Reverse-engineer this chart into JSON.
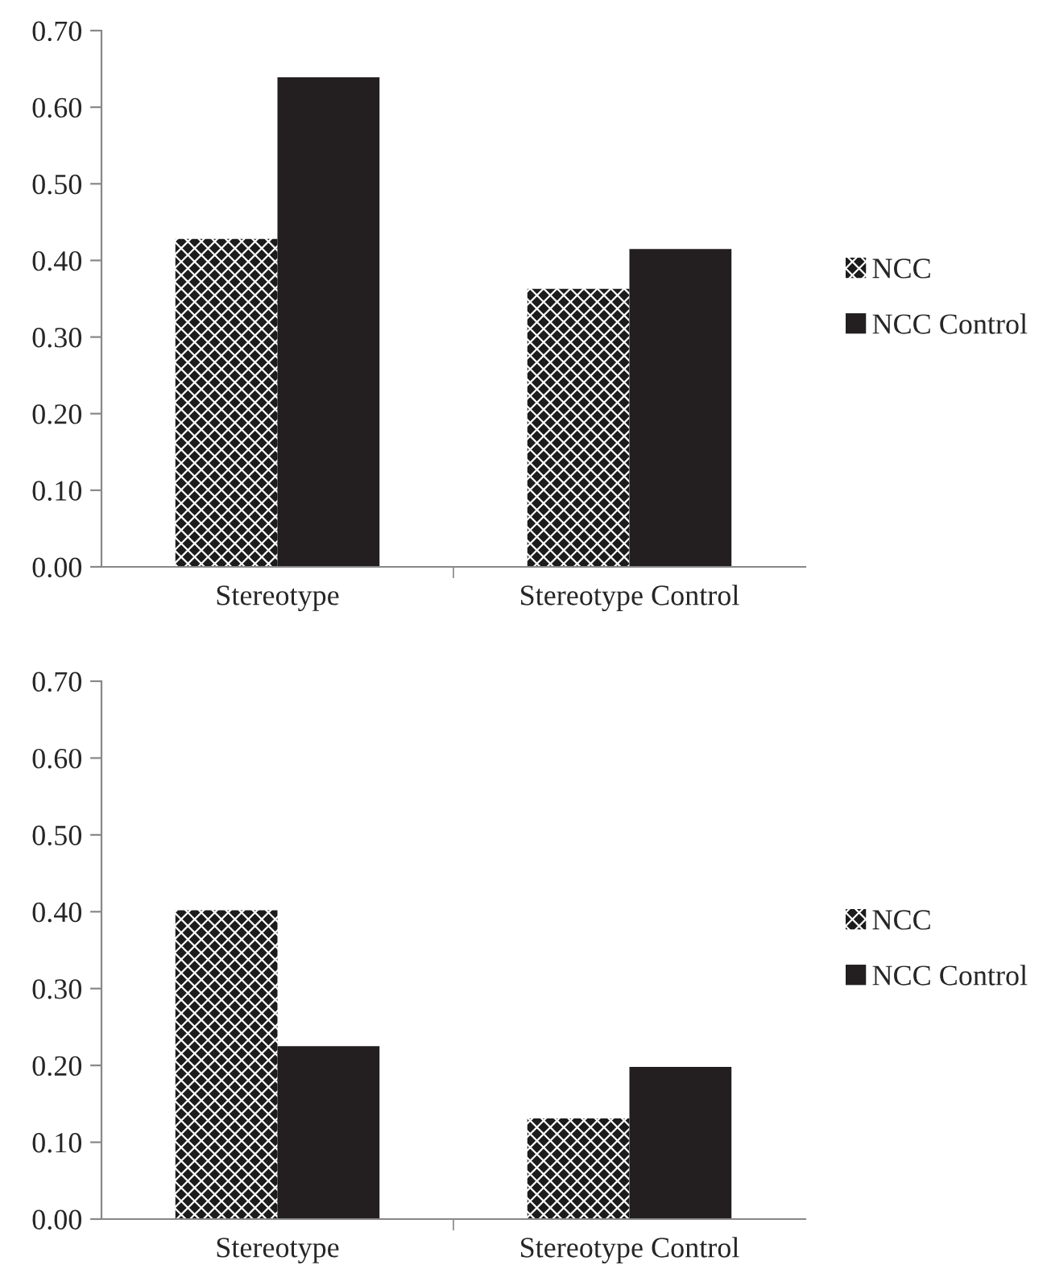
{
  "chart_data": [
    {
      "type": "bar",
      "categories": [
        "Stereotype",
        "Stereotype Control"
      ],
      "series": [
        {
          "name": "NCC",
          "color": "#1c1c1c",
          "values": [
            0.428,
            0.363
          ]
        },
        {
          "name": "NCC Control",
          "color": "#231f20",
          "values": [
            0.639,
            0.415
          ]
        }
      ],
      "ylim": [
        0,
        0.7
      ],
      "yticks": [
        {
          "value": 0,
          "label": "0.00"
        },
        {
          "value": 0.1,
          "label": "0.10"
        },
        {
          "value": 0.2,
          "label": "0.20"
        },
        {
          "value": 0.3,
          "label": "0.30"
        },
        {
          "value": 0.4,
          "label": "0.40"
        },
        {
          "value": 0.5,
          "label": "0.50"
        },
        {
          "value": 0.6,
          "label": "0.60"
        },
        {
          "value": 0.7,
          "label": "0.70"
        }
      ],
      "legend": "right"
    },
    {
      "type": "bar",
      "categories": [
        "Stereotype",
        "Stereotype Control"
      ],
      "series": [
        {
          "name": "NCC",
          "color": "#1c1c1c",
          "values": [
            0.402,
            0.131
          ]
        },
        {
          "name": "NCC Control",
          "color": "#231f20",
          "values": [
            0.225,
            0.198
          ]
        }
      ],
      "ylim": [
        0,
        0.7
      ],
      "yticks": [
        {
          "value": 0,
          "label": "0.00"
        },
        {
          "value": 0.1,
          "label": "0.10"
        },
        {
          "value": 0.2,
          "label": "0.20"
        },
        {
          "value": 0.3,
          "label": "0.30"
        },
        {
          "value": 0.4,
          "label": "0.40"
        },
        {
          "value": 0.5,
          "label": "0.50"
        },
        {
          "value": 0.6,
          "label": "0.60"
        },
        {
          "value": 0.7,
          "label": "0.70"
        }
      ],
      "legend": "right"
    }
  ]
}
